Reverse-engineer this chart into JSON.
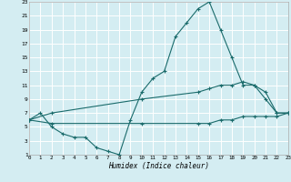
{
  "xlabel": "Humidex (Indice chaleur)",
  "bg_color": "#d4edf2",
  "grid_color": "#ffffff",
  "line_color": "#1a6b6b",
  "xmin": 0,
  "xmax": 23,
  "ymin": 1,
  "ymax": 23,
  "yticks": [
    1,
    3,
    5,
    7,
    9,
    11,
    13,
    15,
    17,
    19,
    21,
    23
  ],
  "xticks": [
    0,
    1,
    2,
    3,
    4,
    5,
    6,
    7,
    8,
    9,
    10,
    11,
    12,
    13,
    14,
    15,
    16,
    17,
    18,
    19,
    20,
    21,
    22,
    23
  ],
  "line1_x": [
    0,
    1,
    2,
    3,
    4,
    5,
    6,
    7,
    8,
    9,
    10,
    11,
    12,
    13,
    14,
    15,
    16,
    17,
    18,
    19,
    20,
    21,
    22,
    23
  ],
  "line1_y": [
    6,
    7,
    5,
    4,
    3.5,
    3.5,
    2,
    1.5,
    1,
    6,
    10,
    12,
    13,
    18,
    20,
    22,
    23,
    19,
    15,
    11,
    11,
    10,
    7,
    7
  ],
  "line2_x": [
    0,
    2,
    10,
    15,
    16,
    17,
    18,
    19,
    20,
    21,
    22,
    23
  ],
  "line2_y": [
    6,
    7,
    9,
    10,
    10.5,
    11,
    11,
    11.5,
    11,
    9,
    7,
    7
  ],
  "line3_x": [
    0,
    2,
    10,
    15,
    16,
    17,
    18,
    19,
    20,
    21,
    22,
    23
  ],
  "line3_y": [
    6,
    5.5,
    5.5,
    5.5,
    5.5,
    6,
    6,
    6.5,
    6.5,
    6.5,
    6.5,
    7
  ]
}
